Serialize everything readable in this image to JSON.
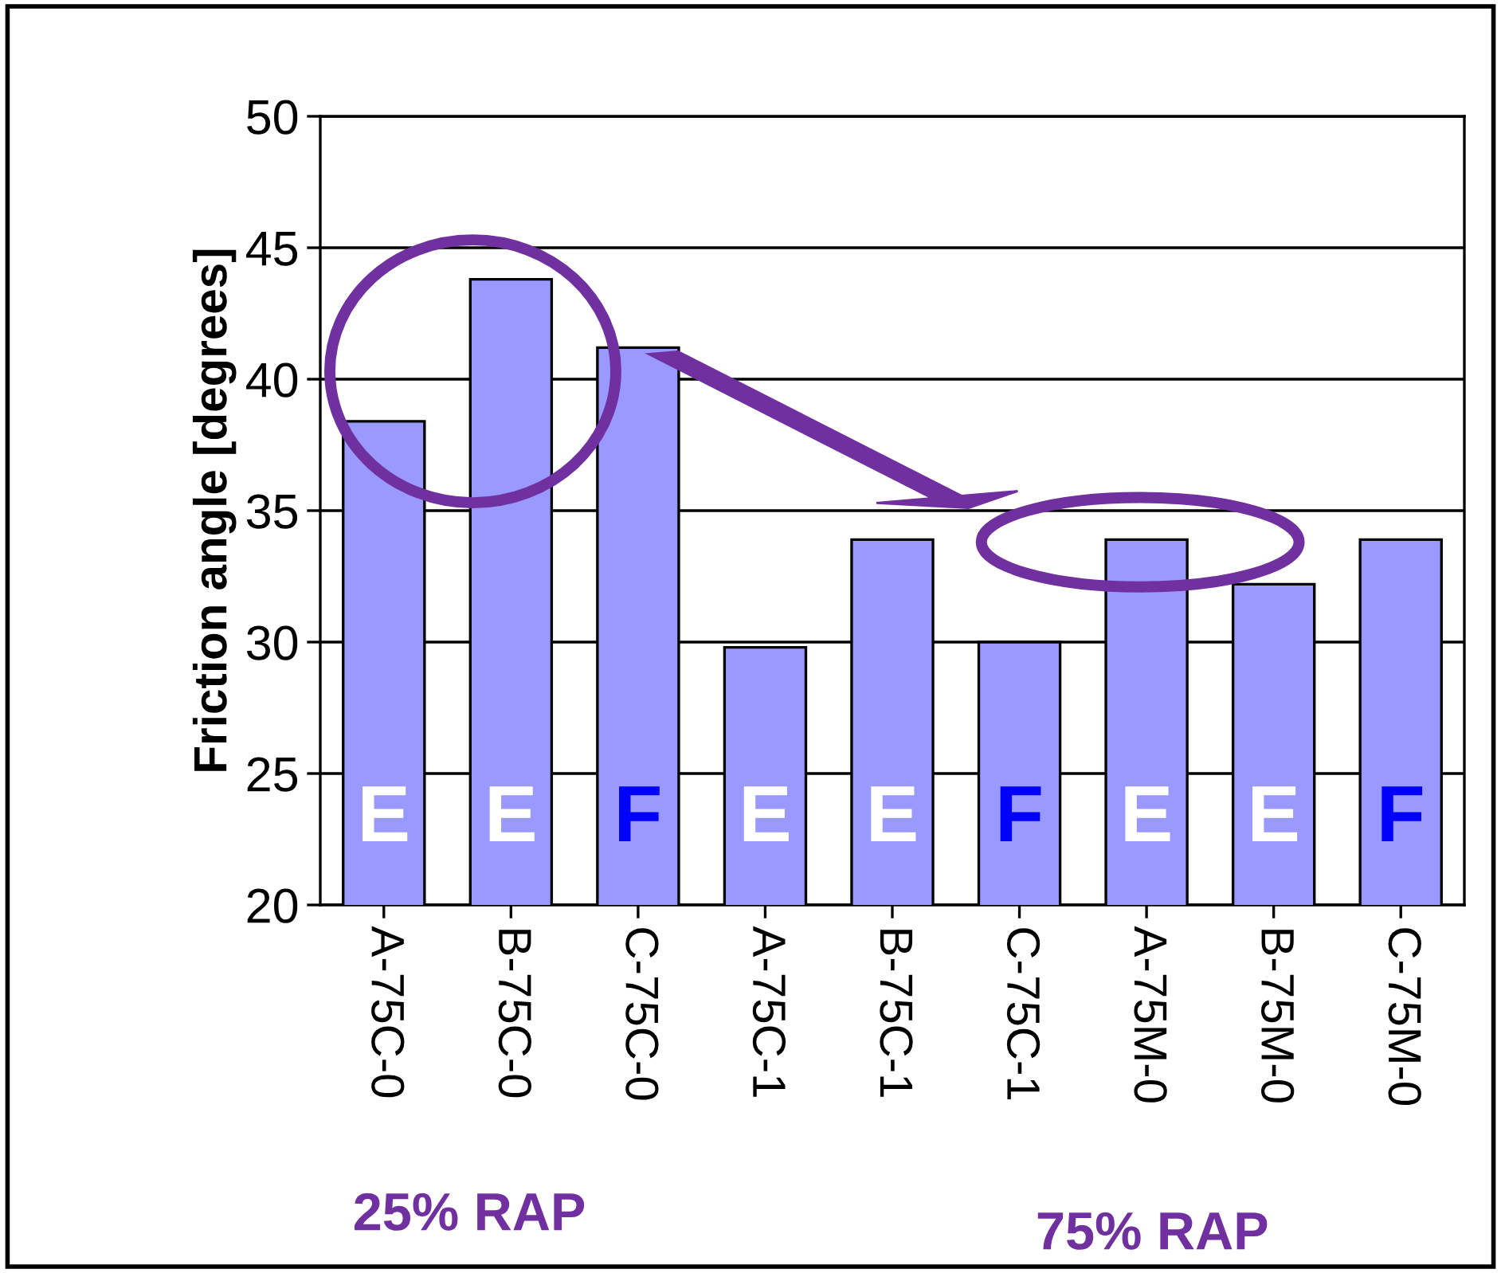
{
  "chart_data": {
    "type": "bar",
    "ylabel": "Friction angle [degrees]",
    "categories": [
      "A-75C-0",
      "B-75C-0",
      "C-75C-0",
      "A-75C-1",
      "B-75C-1",
      "C-75C-1",
      "A-75M-0",
      "B-75M-0",
      "C-75M-0"
    ],
    "values": [
      38.4,
      43.8,
      41.2,
      29.8,
      33.9,
      30.0,
      33.9,
      32.2,
      33.9
    ],
    "color": "#9999ff",
    "ylim": [
      20,
      50
    ],
    "yticks": [
      20,
      25,
      30,
      35,
      40,
      45,
      50
    ],
    "grid": "y",
    "annotations": [
      "E",
      "E",
      "F",
      "E",
      "E",
      "F",
      "E",
      "E",
      "F",
      "25% RAP",
      "75% RAP"
    ]
  }
}
